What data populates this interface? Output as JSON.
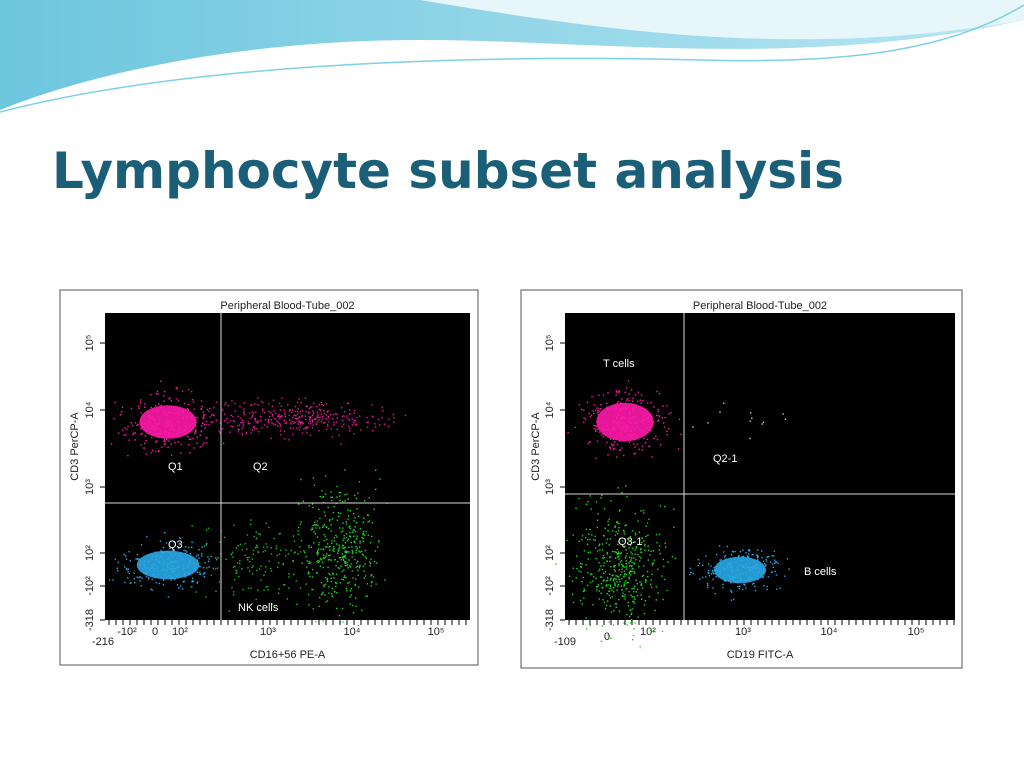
{
  "title": "Lymphocyte subset analysis",
  "plots": [
    {
      "title": "Peripheral Blood-Tube_002",
      "x_label": "CD16+56 PE-A",
      "y_label": "CD3 PerCP-A",
      "x_ticks": [
        "-216",
        "-10²",
        "0",
        "10²",
        "10³",
        "10⁴",
        "10⁵"
      ],
      "y_ticks": [
        "10⁵",
        "10⁴",
        "10³",
        "10²",
        "-10²",
        "-318"
      ],
      "regions": [
        "Q1",
        "Q2",
        "Q3",
        "NK cells"
      ]
    },
    {
      "title": "Peripheral Blood-Tube_002",
      "x_label": "CD19 FITC-A",
      "y_label": "CD3 PerCP-A",
      "x_ticks": [
        "-109",
        "0",
        "10²",
        "10³",
        "10⁴",
        "10⁵"
      ],
      "y_ticks": [
        "10⁵",
        "10⁴",
        "10³",
        "10²",
        "-10²",
        "-318"
      ],
      "regions": [
        "T cells",
        "Q2-1",
        "Q3-1",
        "B cells"
      ]
    }
  ]
}
